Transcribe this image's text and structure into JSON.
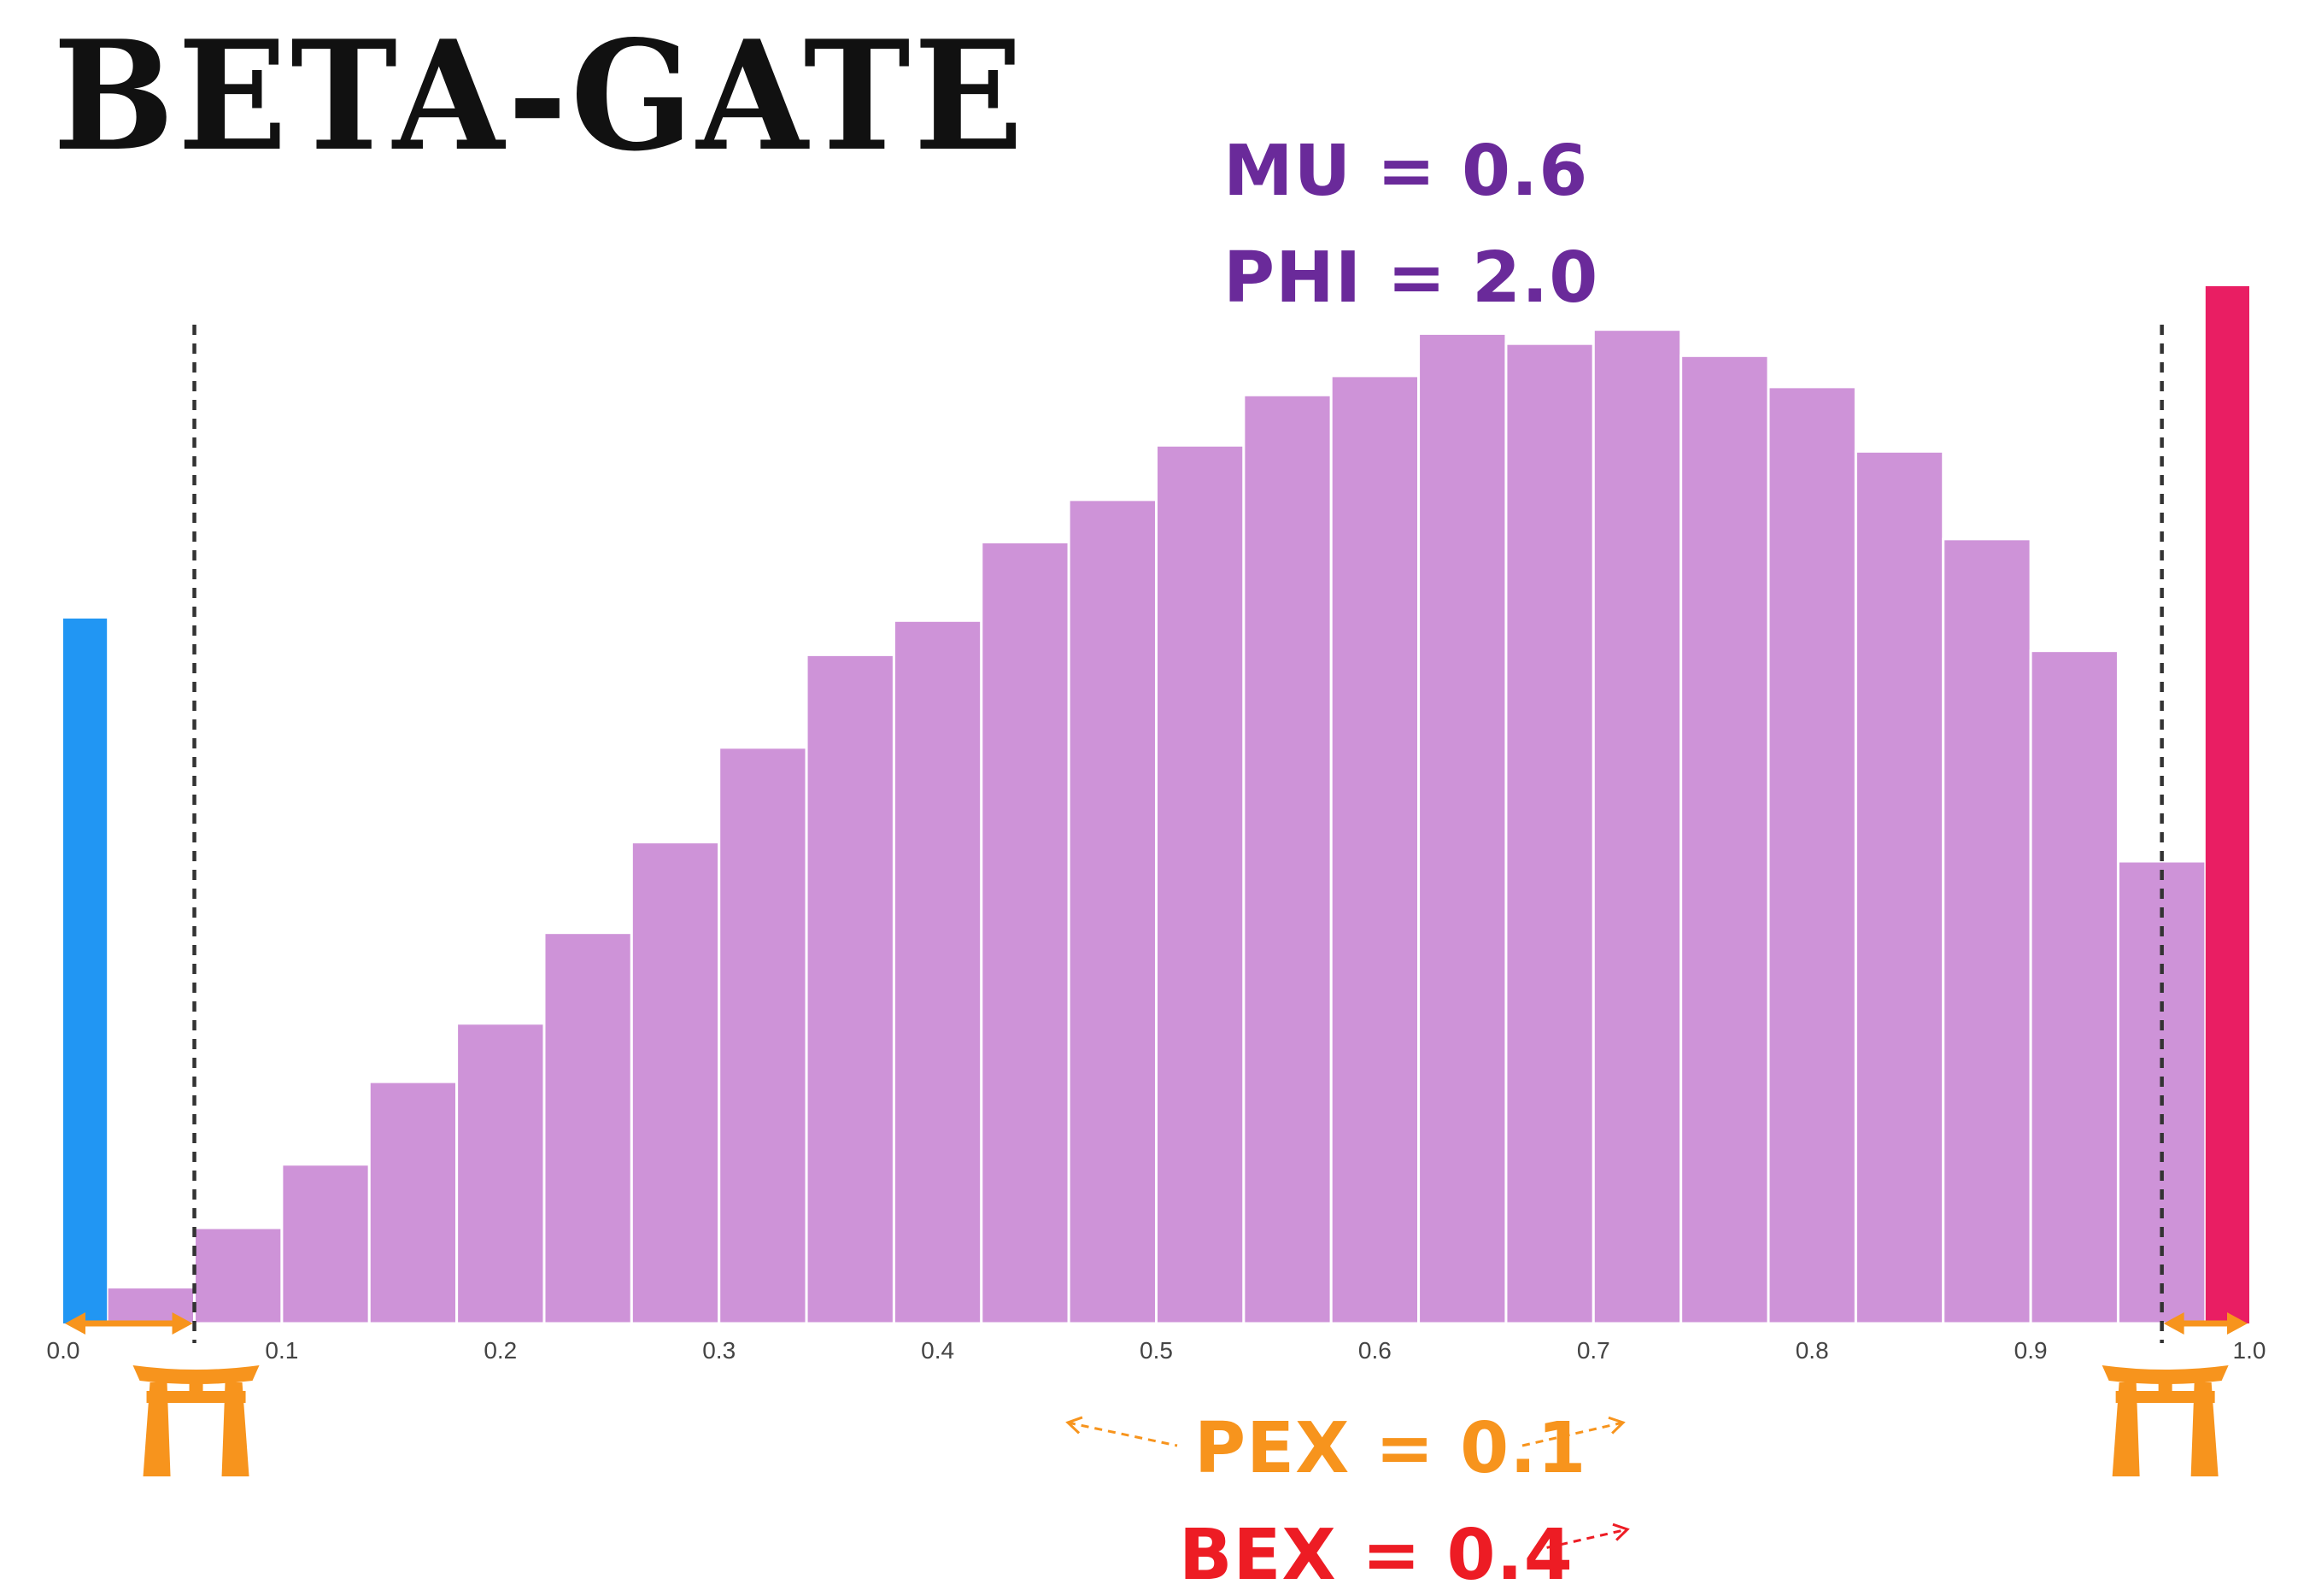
{
  "title": "BETA-GATE",
  "params": {
    "mu": "MU = 0.6",
    "phi": "PHI = 2.0",
    "pex": "PEX = 0.1",
    "bex": "BEX = 0.4"
  },
  "colors": {
    "hist": "#CE93D8",
    "zero_bar": "#2196F3",
    "one_bar": "#E91E63",
    "mu_phi_text": "#6A2A9A",
    "pex": "#F7941D",
    "bex": "#ED1C24",
    "gate": "#F7941D",
    "axis_text": "#444444"
  },
  "icons": {
    "gate": "torii-gate-icon"
  },
  "chart_data": {
    "type": "bar",
    "title": "",
    "xlabel": "",
    "ylabel": "",
    "xlim": [
      0.0,
      1.0
    ],
    "ylim": [
      0,
      1.05
    ],
    "x_ticks": [
      0.0,
      0.1,
      0.2,
      0.3,
      0.4,
      0.5,
      0.6,
      0.7,
      0.8,
      0.9,
      1.0
    ],
    "x_tick_labels": [
      "0.0",
      "0.1",
      "0.2",
      "0.3",
      "0.4",
      "0.5",
      "0.6",
      "0.7",
      "0.8",
      "0.9",
      "1.0"
    ],
    "grid": false,
    "gate_thresholds": [
      0.06,
      0.96
    ],
    "histogram": {
      "bin_edges": [
        0.02,
        0.06,
        0.1,
        0.14,
        0.18,
        0.22,
        0.26,
        0.3,
        0.34,
        0.38,
        0.42,
        0.46,
        0.5,
        0.54,
        0.58,
        0.62,
        0.66,
        0.7,
        0.74,
        0.78,
        0.82,
        0.86,
        0.9,
        0.94,
        0.98
      ],
      "values": [
        0.036,
        0.095,
        0.158,
        0.24,
        0.298,
        0.388,
        0.478,
        0.572,
        0.664,
        0.698,
        0.776,
        0.818,
        0.872,
        0.922,
        0.941,
        0.983,
        0.973,
        0.987,
        0.961,
        0.93,
        0.866,
        0.779,
        0.668,
        0.459
      ]
    },
    "zero_spike": {
      "x": 0.0,
      "width": 0.02,
      "value": 0.7
    },
    "one_spike": {
      "x": 0.98,
      "width": 0.02,
      "value": 1.03
    }
  }
}
